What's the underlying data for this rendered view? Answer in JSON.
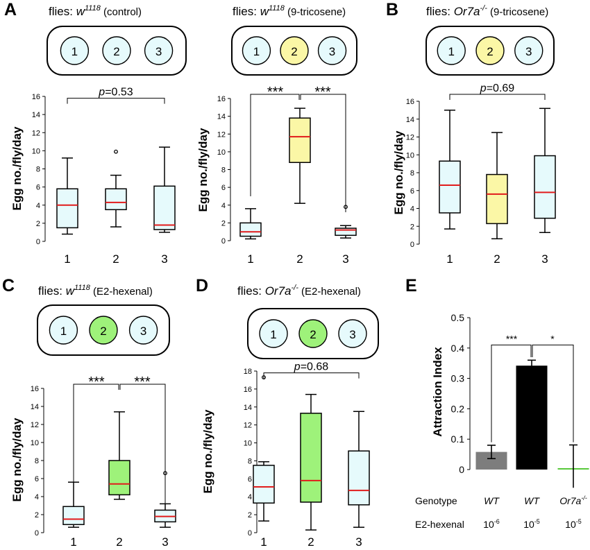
{
  "panels": [
    {
      "id": "A1",
      "label": "A",
      "title": {
        "pre": "flies: ",
        "geno": "w",
        "sup": "1118",
        "post": " (control)"
      },
      "wells": {
        "labels": [
          "1",
          "2",
          "3"
        ],
        "colors": [
          "#e6fafc",
          "#e6fafc",
          "#e6fafc"
        ]
      },
      "ylabel": "Egg no./fly/day",
      "annotation": {
        "kind": "p",
        "p": "p",
        "val": "=0.53"
      }
    },
    {
      "id": "A2",
      "label": "",
      "title": {
        "pre": "flies: ",
        "geno": "w",
        "sup": "1118",
        "post": " (9-tricosene)"
      },
      "wells": {
        "labels": [
          "1",
          "2",
          "3"
        ],
        "colors": [
          "#e6fafc",
          "#fbf7a6",
          "#e6fafc"
        ]
      },
      "ylabel": "Egg no./fly/day",
      "annotation": {
        "kind": "stars",
        "left": "***",
        "right": "***"
      }
    },
    {
      "id": "B",
      "label": "B",
      "title": {
        "pre": "flies: ",
        "geno": "Or7a",
        "sup": "-/-",
        "post": " (9-tricosene)"
      },
      "wells": {
        "labels": [
          "1",
          "2",
          "3"
        ],
        "colors": [
          "#e6fafc",
          "#fbf7a6",
          "#e6fafc"
        ]
      },
      "ylabel": "Egg no./fly/day",
      "annotation": {
        "kind": "p",
        "p": "p",
        "val": "=0.69"
      }
    },
    {
      "id": "C",
      "label": "C",
      "title": {
        "pre": "flies: ",
        "geno": "w",
        "sup": "1118",
        "post": " (E2-hexenal)"
      },
      "wells": {
        "labels": [
          "1",
          "2",
          "3"
        ],
        "colors": [
          "#e6fafc",
          "#9ef27a",
          "#e6fafc"
        ]
      },
      "ylabel": "Egg no./fly/day",
      "annotation": {
        "kind": "stars",
        "left": "***",
        "right": "***"
      }
    },
    {
      "id": "D",
      "label": "D",
      "title": {
        "pre": "flies: ",
        "geno": "Or7a",
        "sup": "-/-",
        "post": " (E2-hexenal)"
      },
      "wells": {
        "labels": [
          "1",
          "2",
          "3"
        ],
        "colors": [
          "#e6fafc",
          "#9ef27a",
          "#e6fafc"
        ]
      },
      "ylabel": "Egg no./fly/day",
      "annotation": {
        "kind": "p",
        "p": "p",
        "val": "=0.68"
      }
    },
    {
      "id": "E",
      "label": "E",
      "ylabel": "Attraction Index",
      "annotation": {
        "kind": "stars",
        "left": "***",
        "right": "*"
      },
      "rows": {
        "genotype_label": "Genotype",
        "genotypes": [
          "WT",
          "WT",
          "Or7a"
        ],
        "genotype_sup": [
          "",
          "",
          "-/-"
        ],
        "hexenal_label": "E2-hexenal",
        "conc_base": [
          "10",
          "10",
          "10"
        ],
        "conc_exp": [
          "-6",
          "-5",
          "-5"
        ]
      }
    }
  ],
  "chart_data": [
    {
      "panel": "A1",
      "type": "box",
      "categories": [
        "1",
        "2",
        "3"
      ],
      "ylim": [
        0,
        16
      ],
      "yticks": [
        0,
        2,
        4,
        6,
        8,
        10,
        12,
        14,
        16
      ],
      "boxes": [
        {
          "min": 0.8,
          "q1": 1.5,
          "median": 4.0,
          "q3": 5.8,
          "max": 9.2,
          "fill": "#e6fafc"
        },
        {
          "min": 1.6,
          "q1": 3.5,
          "median": 4.3,
          "q3": 5.8,
          "max": 7.3,
          "fill": "#e6fafc",
          "outliers": [
            9.9
          ]
        },
        {
          "min": 1.0,
          "q1": 1.3,
          "median": 1.8,
          "q3": 6.1,
          "max": 10.4,
          "fill": "#e6fafc"
        }
      ]
    },
    {
      "panel": "A2",
      "type": "box",
      "categories": [
        "1",
        "2",
        "3"
      ],
      "ylim": [
        0,
        16
      ],
      "yticks": [
        0,
        2,
        4,
        6,
        8,
        10,
        12,
        14,
        16
      ],
      "boxes": [
        {
          "min": 0.2,
          "q1": 0.5,
          "median": 1.0,
          "q3": 2.0,
          "max": 3.6,
          "fill": "#e6fafc"
        },
        {
          "min": 4.2,
          "q1": 8.8,
          "median": 11.7,
          "q3": 13.8,
          "max": 14.9,
          "fill": "#fbf7a6"
        },
        {
          "min": 0.3,
          "q1": 0.6,
          "median": 1.2,
          "q3": 1.4,
          "max": 1.7,
          "fill": "#e6fafc",
          "outliers": [
            3.8
          ]
        }
      ]
    },
    {
      "panel": "B",
      "type": "box",
      "categories": [
        "1",
        "2",
        "3"
      ],
      "ylim": [
        0,
        16
      ],
      "yticks": [
        0,
        2,
        4,
        6,
        8,
        10,
        12,
        14,
        16
      ],
      "boxes": [
        {
          "min": 1.7,
          "q1": 3.5,
          "median": 6.6,
          "q3": 9.3,
          "max": 15.0,
          "fill": "#e6fafc"
        },
        {
          "min": 0.6,
          "q1": 2.3,
          "median": 5.6,
          "q3": 7.8,
          "max": 12.5,
          "fill": "#fbf7a6"
        },
        {
          "min": 1.3,
          "q1": 2.9,
          "median": 5.8,
          "q3": 9.9,
          "max": 15.2,
          "fill": "#e6fafc"
        }
      ]
    },
    {
      "panel": "C",
      "type": "box",
      "categories": [
        "1",
        "2",
        "3"
      ],
      "ylim": [
        0,
        16
      ],
      "yticks": [
        0,
        2,
        4,
        6,
        8,
        10,
        12,
        14,
        16
      ],
      "boxes": [
        {
          "min": 0.6,
          "q1": 0.9,
          "median": 1.5,
          "q3": 2.9,
          "max": 5.6,
          "fill": "#e6fafc"
        },
        {
          "min": 3.7,
          "q1": 4.2,
          "median": 5.4,
          "q3": 8.0,
          "max": 13.4,
          "fill": "#9ef27a"
        },
        {
          "min": 0.6,
          "q1": 1.2,
          "median": 1.8,
          "q3": 2.5,
          "max": 3.2,
          "fill": "#e6fafc",
          "outliers": [
            6.6
          ]
        }
      ]
    },
    {
      "panel": "D",
      "type": "box",
      "categories": [
        "1",
        "2",
        "3"
      ],
      "ylim": [
        0,
        18
      ],
      "yticks": [
        0,
        2,
        4,
        6,
        8,
        10,
        12,
        14,
        16,
        18
      ],
      "boxes": [
        {
          "min": 1.3,
          "q1": 3.3,
          "median": 5.1,
          "q3": 7.5,
          "max": 7.9,
          "fill": "#e6fafc",
          "outliers": [
            17.3
          ]
        },
        {
          "min": 0.3,
          "q1": 3.4,
          "median": 5.8,
          "q3": 13.3,
          "max": 15.4,
          "fill": "#9ef27a"
        },
        {
          "min": 0.6,
          "q1": 3.1,
          "median": 4.7,
          "q3": 9.1,
          "max": 13.5,
          "fill": "#e6fafc"
        }
      ]
    },
    {
      "panel": "E",
      "type": "bar",
      "ylim": [
        0,
        0.5
      ],
      "yticks": [
        "0",
        "0.1",
        "0.2",
        "0.3",
        "0.4",
        "0.5"
      ],
      "values": [
        0.058,
        0.342,
        0.003
      ],
      "errors": [
        0.022,
        0.018,
        0.078
      ],
      "colors": [
        "#7d7d7d",
        "#000000",
        "#57c83a"
      ]
    }
  ]
}
